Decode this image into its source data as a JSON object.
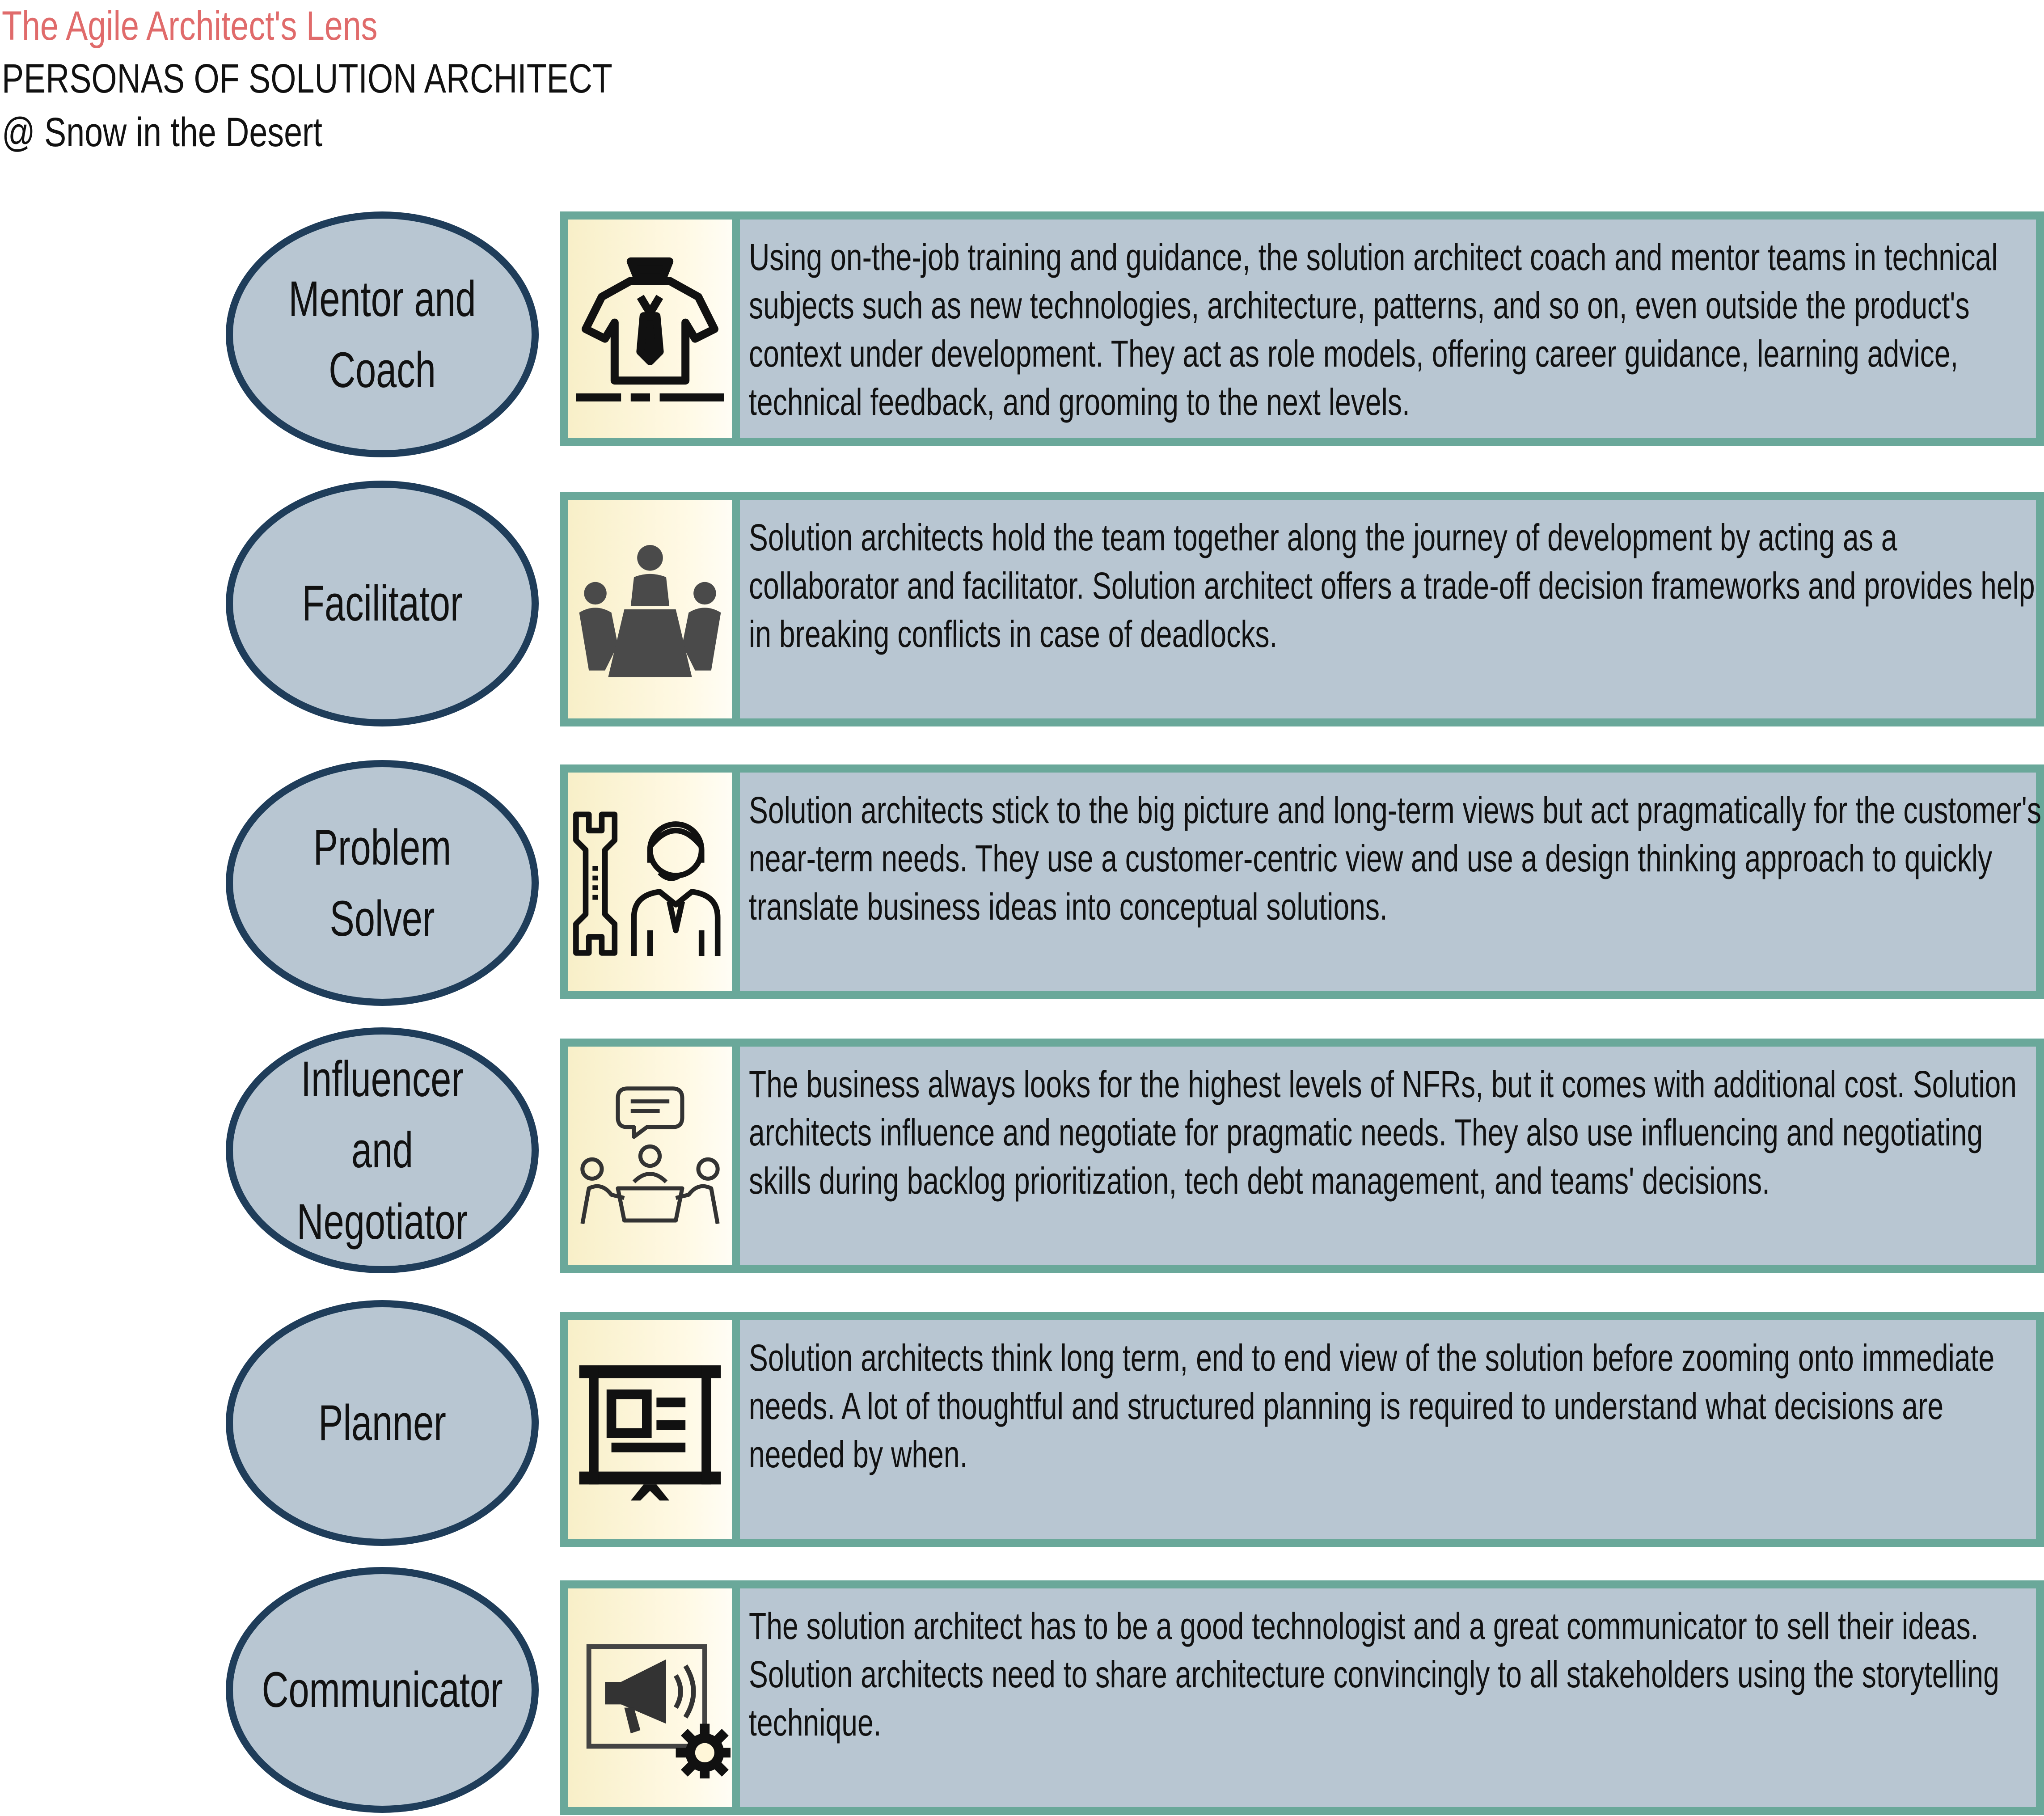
{
  "header": {
    "brand": "The Agile Architect's Lens",
    "title": "PERSONAS OF SOLUTION ARCHITECT",
    "author": "@ Snow in the Desert"
  },
  "colors": {
    "brand": "#e06b6b",
    "ellipse_fill": "#b8c6d2",
    "ellipse_border": "#1f3d5a",
    "card_border": "#6aa89a",
    "card_fill": "#b8c6d2",
    "icon_bg": "#fff6d8"
  },
  "personas": [
    {
      "name": "Mentor and\nCoach",
      "icon": "mentor-icon",
      "description": "Using on-the-job training and guidance, the solution architect coach and mentor teams in technical subjects such as new technologies, architecture, patterns, and so on, even outside the product's context under development. They act as role models, offering career guidance, learning advice, technical feedback, and grooming to the next levels."
    },
    {
      "name": "Facilitator",
      "icon": "meeting-table-icon",
      "description": "Solution architects hold the team together along the journey of development by acting as a collaborator and facilitator. Solution architect offers a trade-off decision frameworks and provides help in breaking conflicts in case of deadlocks."
    },
    {
      "name": "Problem\nSolver",
      "icon": "wrench-support-icon",
      "description": "Solution architects stick to the big picture and long-term views but act pragmatically for the customer's near-term needs. They use a customer-centric view and use a design thinking approach to quickly translate business ideas into conceptual solutions."
    },
    {
      "name": "Influencer and\nNegotiator",
      "icon": "negotiation-icon",
      "description": "The business always looks for the highest levels of NFRs, but it comes with additional cost. Solution architects influence and negotiate for pragmatic needs. They also use influencing and negotiating skills during backlog prioritization, tech debt management, and teams' decisions."
    },
    {
      "name": "Planner",
      "icon": "presentation-board-icon",
      "description": "Solution architects think long term, end to end view of the solution before zooming onto immediate needs. A lot of thoughtful and structured planning is required to understand what decisions are needed by when."
    },
    {
      "name": "Communicator",
      "icon": "megaphone-gear-icon",
      "description": "The solution architect has to be a good technologist and a great communicator to sell their ideas. Solution architects need to share architecture convincingly to all stakeholders using the storytelling technique."
    }
  ]
}
